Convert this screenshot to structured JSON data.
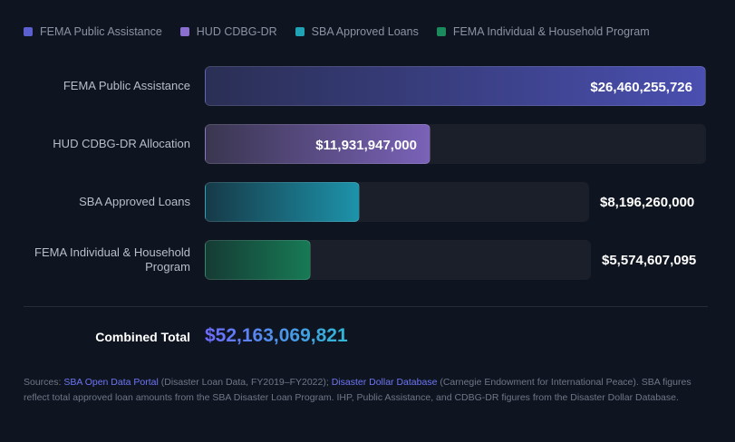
{
  "legend": [
    {
      "label": "FEMA Public Assistance",
      "color": "#5b5fd0"
    },
    {
      "label": "HUD CDBG-DR",
      "color": "#8b6fd0"
    },
    {
      "label": "SBA Approved Loans",
      "color": "#1fa3b5"
    },
    {
      "label": "FEMA Individual & Household Program",
      "color": "#1b8a5c"
    }
  ],
  "chart_data": {
    "type": "bar",
    "orientation": "horizontal",
    "categories": [
      "FEMA Public Assistance",
      "HUD CDBG-DR Allocation",
      "SBA Approved Loans",
      "FEMA Individual & Household Program"
    ],
    "values": [
      26460255726,
      11931947000,
      8196260000,
      5574607095
    ],
    "value_labels": [
      "$26,460,255,726",
      "$11,931,947,000",
      "$8,196,260,000",
      "$5,574,607,095"
    ],
    "colors": [
      [
        "#2a2f55",
        "#4a4fb0"
      ],
      [
        "#3a3650",
        "#7a62b8"
      ],
      [
        "#163a48",
        "#1d93aa"
      ],
      [
        "#163b34",
        "#177a55"
      ]
    ]
  },
  "total": {
    "label": "Combined Total",
    "value": "$52,163,069,821"
  },
  "sources": {
    "prefix": "Sources: ",
    "link1": "SBA Open Data Portal",
    "mid1": " (Disaster Loan Data, FY2019–FY2022); ",
    "link2": "Disaster Dollar Database",
    "mid2": " (Carnegie Endowment for International Peace). SBA figures reflect total approved loan amounts from the SBA Disaster Loan Program. IHP, Public Assistance, and CDBG-DR figures from the Disaster Dollar Database."
  }
}
